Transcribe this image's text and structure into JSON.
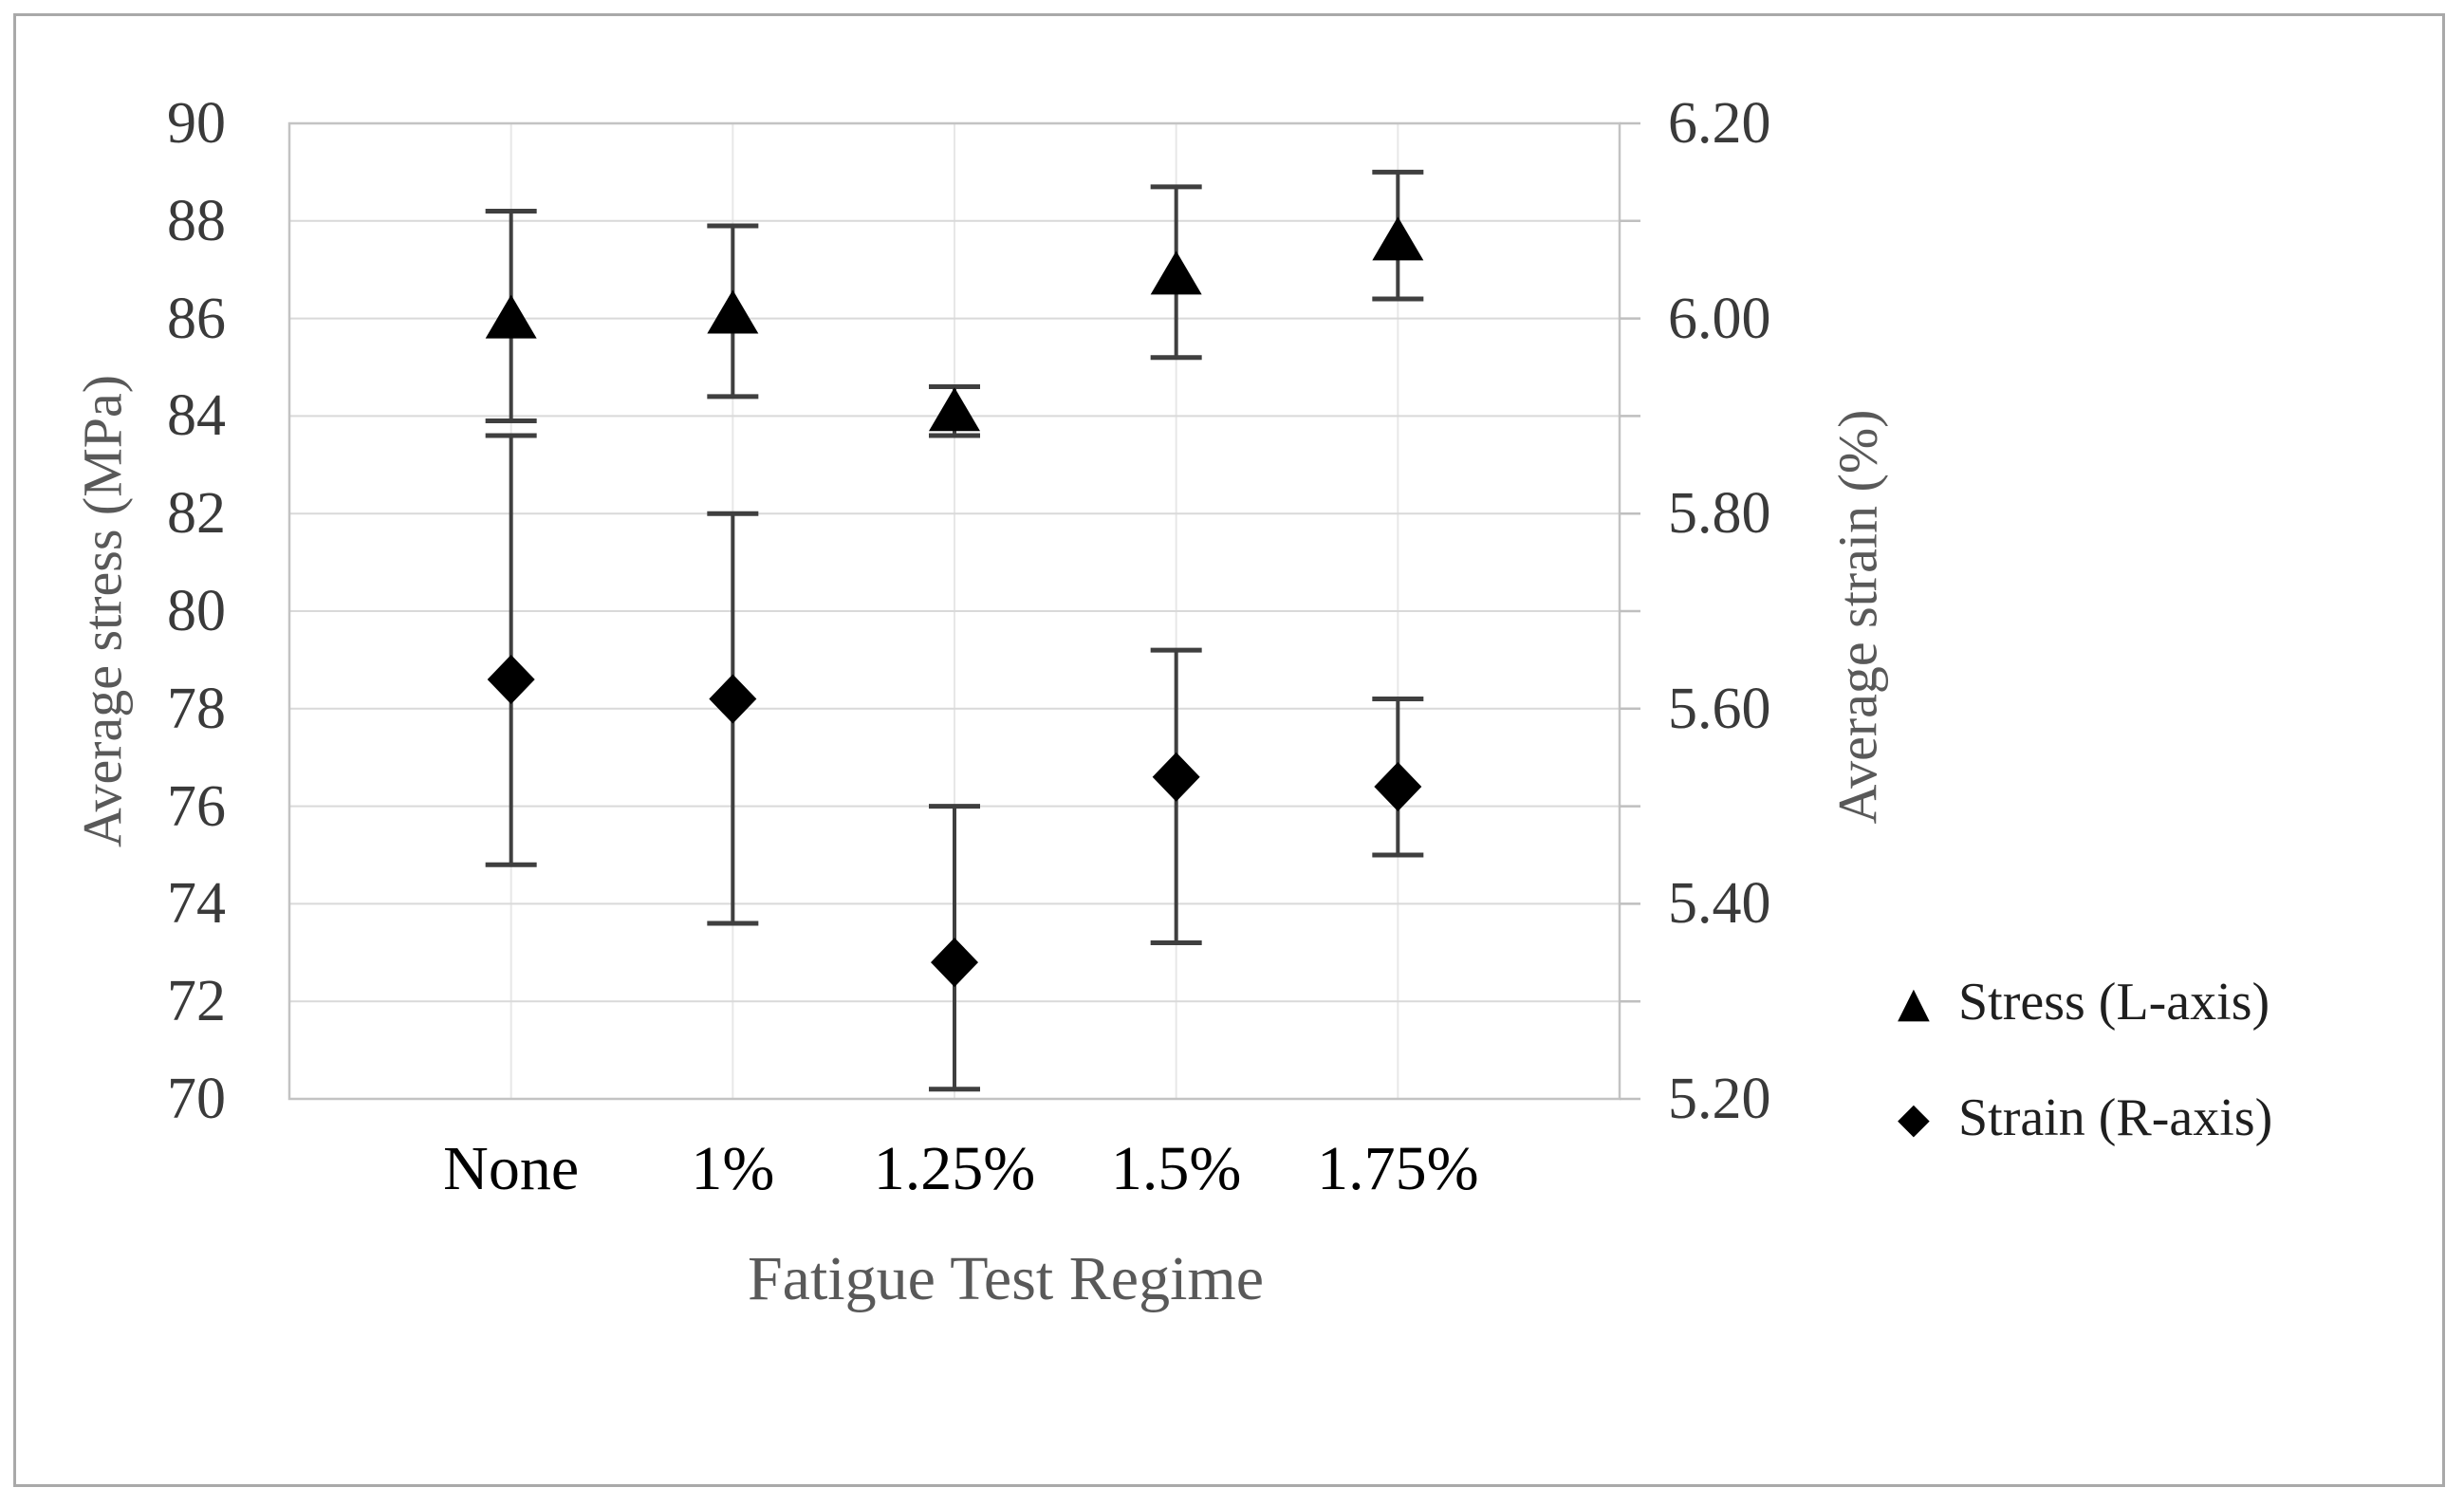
{
  "chart_data": {
    "type": "scatter",
    "title": "",
    "xlabel": "Fatigue Test Regime",
    "ylabel_left": "Average stress (MPa)",
    "ylabel_right": "Average strain (%)",
    "categories": [
      "None",
      "1%",
      "1.25%",
      "1.5%",
      "1.75%"
    ],
    "left_axis": {
      "min": 70,
      "max": 90,
      "step": 2,
      "tick_labels": [
        "90",
        "88",
        "86",
        "84",
        "82",
        "80",
        "78",
        "76",
        "74",
        "72",
        "70"
      ]
    },
    "right_axis": {
      "min": 5.2,
      "max": 6.2,
      "label_step": 0.2,
      "minor_step": 0.1,
      "tick_labels": [
        "6.20",
        "6.00",
        "5.80",
        "5.60",
        "5.40",
        "5.20"
      ]
    },
    "x_axis": {
      "hidden_numeric_range": [
        0,
        6
      ],
      "category_positions": [
        1,
        2,
        3,
        4,
        5
      ]
    },
    "grid": {
      "horizontal": true,
      "vertical": true
    },
    "series": [
      {
        "name": "Stress (L-axis)",
        "axis": "left",
        "marker": "triangle",
        "values": [
          86.0,
          86.1,
          84.1,
          86.9,
          87.6
        ],
        "error_high": [
          88.2,
          87.9,
          84.6,
          88.7,
          89.0
        ],
        "error_low": [
          83.9,
          84.4,
          83.6,
          85.2,
          86.4
        ]
      },
      {
        "name": "Strain (R-axis)",
        "axis": "right",
        "marker": "diamond",
        "values": [
          5.63,
          5.61,
          5.34,
          5.53,
          5.52
        ],
        "error_high": [
          5.88,
          5.8,
          5.5,
          5.66,
          5.61
        ],
        "error_low": [
          5.44,
          5.38,
          5.21,
          5.36,
          5.45
        ]
      }
    ],
    "legend": {
      "position": "right-bottom",
      "items": [
        {
          "symbol": "▲",
          "label": "Stress (L-axis)"
        },
        {
          "symbol": "◆",
          "label": "Strain (R-axis)"
        }
      ]
    }
  },
  "colors": {
    "background": "#ffffff",
    "frame_border": "#a9a9a9",
    "marker": "#000000",
    "error_bar": "#3f3f3f",
    "gridline_horizontal": "#d9d9d9",
    "gridline_vertical": "#e7e7e7",
    "axis_line": "#c3c3c3",
    "tick_mark": "#bfbfbf",
    "tick_label": "#3a3a3a",
    "category_label": "#000000",
    "axis_title": "#595959",
    "legend_text": "#1f1f1f"
  }
}
